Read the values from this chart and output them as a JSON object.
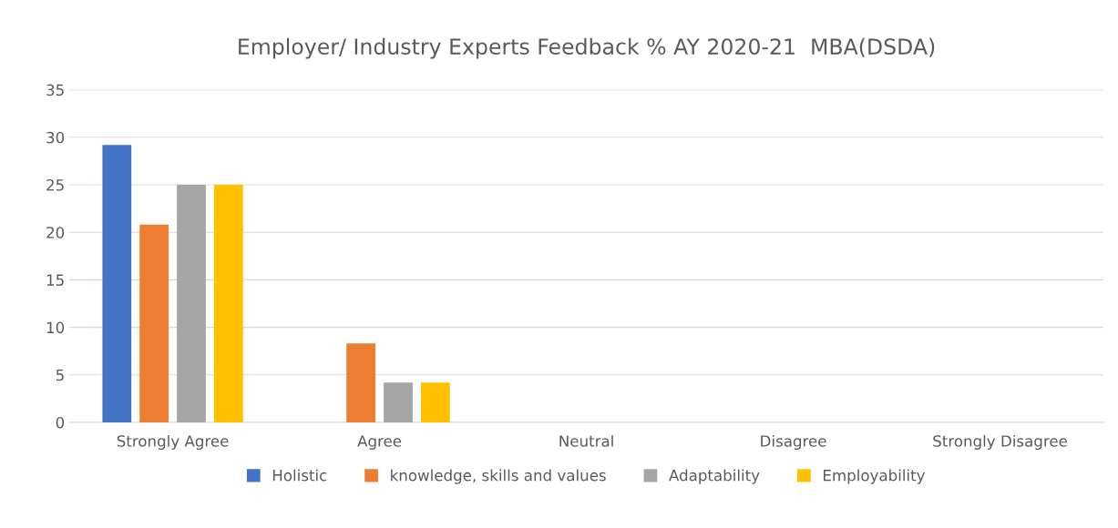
{
  "chart_data": {
    "type": "bar",
    "title": "Employer/ Industry Experts Feedback % AY 2020-21  MBA(DSDA)",
    "categories": [
      "Strongly Agree",
      "Agree",
      "Neutral",
      "Disagree",
      "Strongly Disagree"
    ],
    "series": [
      {
        "name": "Holistic",
        "color": "#4472c4",
        "values": [
          29.2,
          0,
          0,
          0,
          0
        ]
      },
      {
        "name": "knowledge, skills and values",
        "color": "#ed7d31",
        "values": [
          20.8,
          8.3,
          0,
          0,
          0
        ]
      },
      {
        "name": "Adaptability",
        "color": "#a5a5a5",
        "values": [
          25,
          4.2,
          0,
          0,
          0
        ]
      },
      {
        "name": "Employability",
        "color": "#ffc000",
        "values": [
          25,
          4.2,
          0,
          0,
          0
        ]
      }
    ],
    "ylim": [
      0,
      35
    ],
    "yticks": [
      0,
      5,
      10,
      15,
      20,
      25,
      30,
      35
    ],
    "grid": "y",
    "legend": "bottom"
  }
}
